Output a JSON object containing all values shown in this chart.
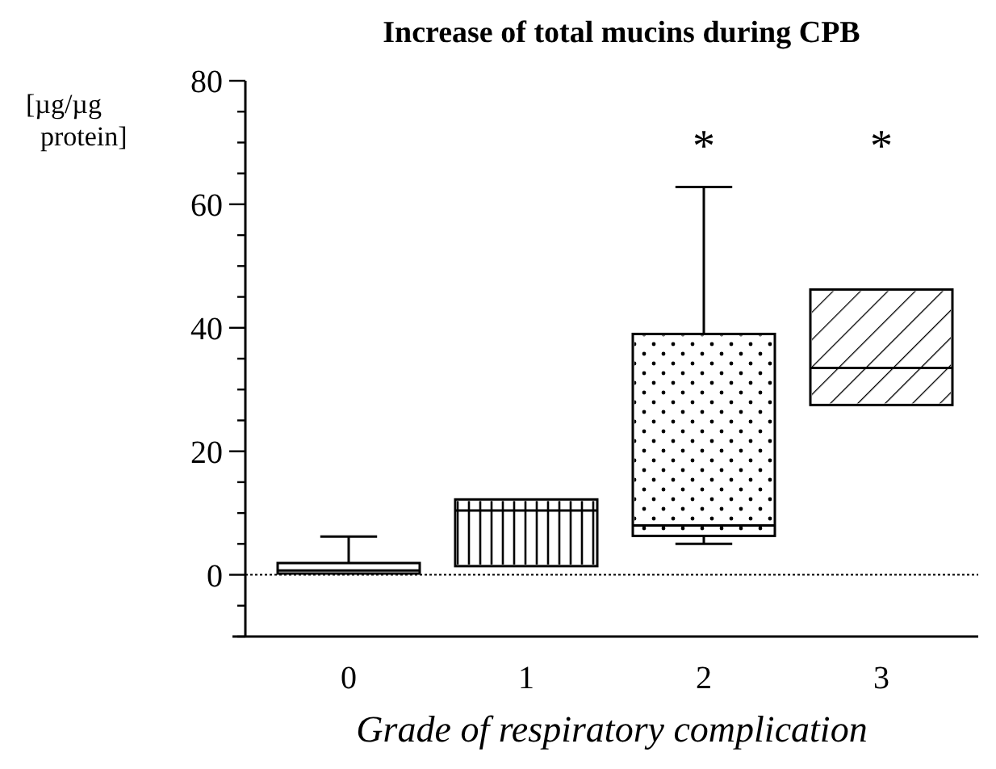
{
  "chart_data": {
    "type": "box",
    "title": "Increase of total mucins during CPB",
    "xlabel": "Grade of respiratory complication",
    "ylabel": "[µg/µg protein]",
    "categories": [
      "0",
      "1",
      "2",
      "3"
    ],
    "boxes": [
      {
        "low": 0.2,
        "q1": 0.2,
        "median": 0.7,
        "q3": 1.9,
        "high": 6.2
      },
      {
        "low": 1.4,
        "q1": 1.4,
        "median": 10.4,
        "q3": 12.2,
        "high": 12.2
      },
      {
        "low": 5,
        "q1": 6.3,
        "median": 8,
        "q3": 39,
        "high": 62.8
      },
      {
        "low": 27.5,
        "q1": 27.5,
        "median": 33.5,
        "q3": 46.2,
        "high": 46.2
      }
    ],
    "ylim": [
      -10,
      80
    ],
    "yticks": [
      {
        "value": -10,
        "label": null
      },
      {
        "value": -5,
        "label": null
      },
      0,
      {
        "value": 5,
        "label": null
      },
      {
        "value": 10,
        "label": null
      },
      {
        "value": 15,
        "label": null
      },
      20,
      {
        "value": 25,
        "label": null
      },
      {
        "value": 30,
        "label": null
      },
      {
        "value": 35,
        "label": null
      },
      40,
      {
        "value": 45,
        "label": null
      },
      {
        "value": 50,
        "label": null
      },
      {
        "value": 55,
        "label": null
      },
      60,
      {
        "value": 65,
        "label": null
      },
      {
        "value": 70,
        "label": null
      },
      {
        "value": 75,
        "label": null
      },
      80
    ],
    "ref_lines": [
      {
        "axis": "y",
        "value": 0,
        "line_style": "dotted"
      }
    ],
    "annotations": [
      "*",
      "*"
    ],
    "grid": false
  }
}
